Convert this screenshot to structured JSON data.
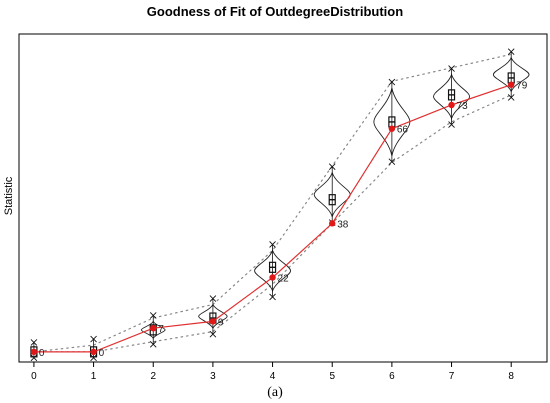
{
  "chart_data": {
    "type": "line",
    "title": "Goodness of Fit of OutdegreeDistribution",
    "ylabel": "Statistic",
    "xlabel": "",
    "caption": "(a)",
    "x": [
      0,
      1,
      2,
      3,
      4,
      5,
      6,
      7,
      8
    ],
    "x_tick_labels": [
      "0",
      "1",
      "2",
      "3",
      "4",
      "5",
      "6",
      "7",
      "8"
    ],
    "xlim": [
      -0.25,
      8.6
    ],
    "ylim": [
      -3,
      94
    ],
    "grid": false,
    "legend": "none",
    "series": [
      {
        "values": [
          0,
          0,
          7,
          9,
          22,
          38,
          66,
          73,
          79
        ],
        "point_labels": [
          "0",
          "0",
          "7",
          "9",
          "22",
          "38",
          "66",
          "73",
          "79"
        ]
      }
    ],
    "simulated_median": [
      0,
      0,
      6.5,
      10,
      25,
      45,
      68,
      76,
      81
    ],
    "band_upper": [
      0,
      2,
      10,
      14,
      30,
      55,
      80,
      84,
      88
    ],
    "band_lower": [
      0,
      0,
      3,
      6,
      20,
      38,
      56,
      68,
      76
    ],
    "violin_lower": [
      0,
      0,
      4,
      7,
      18,
      40,
      58,
      69,
      77
    ],
    "violin_upper": [
      1,
      2,
      9,
      14,
      30,
      53,
      78,
      82,
      87
    ],
    "colors": {
      "observed_line": "#e03030",
      "observed_point": "#e01818",
      "band": "#888888",
      "violin": "#222222",
      "box": "#111111",
      "label": "#6a2a2a"
    }
  }
}
